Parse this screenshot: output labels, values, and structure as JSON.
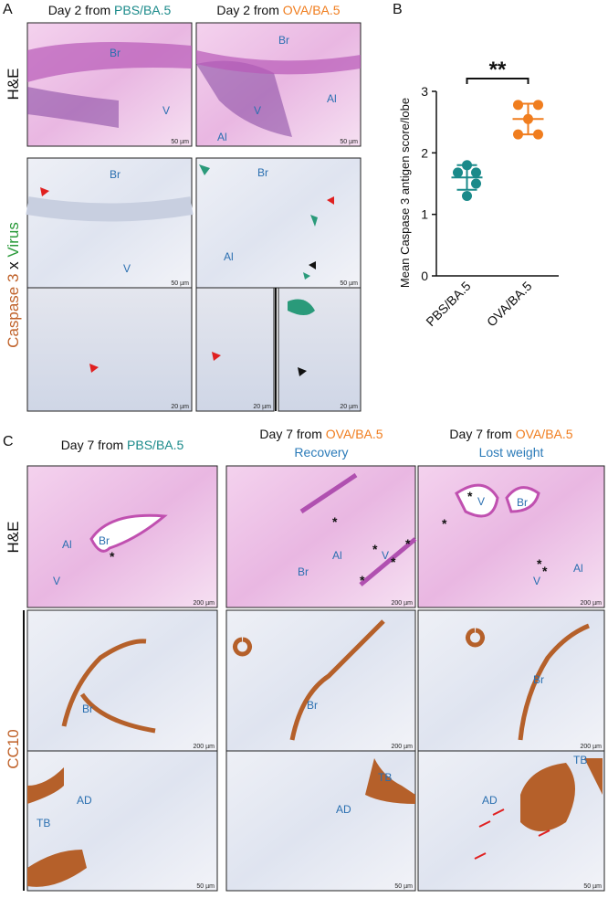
{
  "panel_a": {
    "letter": "A",
    "headers": [
      {
        "prefix": "Day 2 from ",
        "group": "PBS/BA.5"
      },
      {
        "prefix": "Day 2 from ",
        "group": "OVA/BA.5"
      }
    ],
    "row_labels": {
      "he": "H&E",
      "caspase": "Caspase 3",
      "x": " x ",
      "virus": "Virus"
    },
    "images": [
      {
        "labels": [
          "Br",
          "V"
        ],
        "scale": "50 µm"
      },
      {
        "labels": [
          "Br",
          "V",
          "Al",
          "Al"
        ],
        "scale": "50 µm"
      },
      {
        "labels": [
          "Br",
          "V"
        ],
        "scale": "50 µm"
      },
      {
        "labels": [
          "Br",
          "Al"
        ],
        "scale": "50 µm"
      },
      {
        "scale": "20 µm"
      },
      {
        "scale": "20 µm"
      },
      {
        "scale": "20 µm"
      }
    ]
  },
  "panel_b": {
    "letter": "B"
  },
  "chart_data": {
    "type": "dot",
    "ylabel": "Mean Caspase 3 antigen score/lobe",
    "annotation": "**",
    "categories": [
      "PBS/BA.5",
      "OVA/BA.5"
    ],
    "groups": [
      {
        "color": "#1a8a8a",
        "values": [
          1.8,
          1.68,
          1.68,
          1.5,
          1.3
        ],
        "mean": 1.6,
        "sd": 0.2
      },
      {
        "color": "#f07d1e",
        "values": [
          2.78,
          2.78,
          2.55,
          2.3,
          2.3
        ],
        "mean": 2.55,
        "sd": 0.25
      }
    ],
    "ylim": [
      0,
      3
    ],
    "yticks": [
      0,
      1,
      2,
      3
    ]
  },
  "panel_c": {
    "letter": "C",
    "headers": [
      {
        "prefix": "Day 7 from ",
        "group": "PBS/BA.5"
      },
      {
        "prefix": "Day 7 from ",
        "group": "OVA/BA.5",
        "subtitle": "Recovery"
      },
      {
        "prefix": "Day 7 from ",
        "group": "OVA/BA.5",
        "subtitle": "Lost weight"
      }
    ],
    "row_labels": {
      "he": "H&E",
      "cc10": "CC10"
    },
    "images": [
      {
        "labels": [
          "Al",
          "Br",
          "V",
          "*"
        ],
        "scale": "200 µm"
      },
      {
        "labels": [
          "Br",
          "Al",
          "V",
          "*",
          "*",
          "*",
          "*",
          "*"
        ],
        "scale": "200 µm"
      },
      {
        "labels": [
          "V",
          "Br",
          "V",
          "Al",
          "*",
          "*",
          "*",
          "*"
        ],
        "scale": "200 µm"
      },
      {
        "labels": [
          "Br"
        ],
        "scale": "200 µm"
      },
      {
        "labels": [
          "Br"
        ],
        "scale": "200 µm"
      },
      {
        "labels": [
          "Br"
        ],
        "scale": "200 µm"
      },
      {
        "labels": [
          "TB",
          "AD"
        ],
        "scale": "50 µm"
      },
      {
        "labels": [
          "TB",
          "AD"
        ],
        "scale": "50 µm"
      },
      {
        "labels": [
          "TB",
          "AD"
        ],
        "scale": "50 µm"
      }
    ]
  }
}
